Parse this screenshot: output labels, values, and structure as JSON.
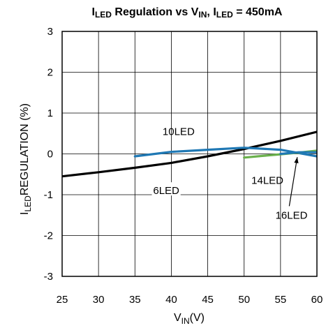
{
  "chart_data": {
    "type": "line",
    "title": {
      "parts": [
        {
          "text": "I",
          "sub": false
        },
        {
          "text": "LED",
          "sub": true
        },
        {
          "text": " Regulation vs V",
          "sub": false
        },
        {
          "text": "IN",
          "sub": true
        },
        {
          "text": ", I",
          "sub": false
        },
        {
          "text": "LED",
          "sub": true
        },
        {
          "text": " = 450mA",
          "sub": false
        }
      ]
    },
    "xlabel": {
      "main": "V",
      "sub": "IN",
      "rest": "(V)"
    },
    "ylabel": {
      "sub": "LED",
      "rest": "REGULATION (%)",
      "lead": "I"
    },
    "xlim": [
      25,
      60
    ],
    "ylim": [
      -3,
      3
    ],
    "xticks": [
      25,
      30,
      35,
      40,
      45,
      50,
      55,
      60
    ],
    "yticks": [
      -3,
      -2,
      -1,
      0,
      1,
      2,
      3
    ],
    "grid": true,
    "series": [
      {
        "name": "6LED",
        "color": "#000000",
        "x": [
          25,
          30,
          35,
          40,
          45,
          50,
          55,
          60
        ],
        "y": [
          -0.55,
          -0.45,
          -0.34,
          -0.22,
          -0.06,
          0.12,
          0.32,
          0.54
        ]
      },
      {
        "name": "10LED",
        "color": "#1f78b4",
        "x": [
          35,
          40,
          45,
          50,
          55,
          60
        ],
        "y": [
          -0.06,
          0.05,
          0.1,
          0.15,
          0.1,
          -0.06
        ]
      },
      {
        "name": "14LED",
        "color": "#6ab04c",
        "x": [
          50,
          52.5,
          55,
          57.5,
          60
        ],
        "y": [
          -0.09,
          -0.05,
          -0.01,
          0.03,
          0.08
        ]
      },
      {
        "name": "16LED",
        "color": "#1f78b4",
        "x": [
          55,
          57.5,
          60
        ],
        "y": [
          0.0,
          0.04,
          0.04
        ]
      }
    ],
    "annotations": [
      {
        "text": "10LED",
        "x": 41,
        "y": 0.55
      },
      {
        "text": "6LED",
        "x": 39.3,
        "y": -0.9
      },
      {
        "text": "14LED",
        "x": 53.2,
        "y": -0.65
      },
      {
        "text": "16LED",
        "x": 56.5,
        "y": -1.5
      }
    ]
  }
}
